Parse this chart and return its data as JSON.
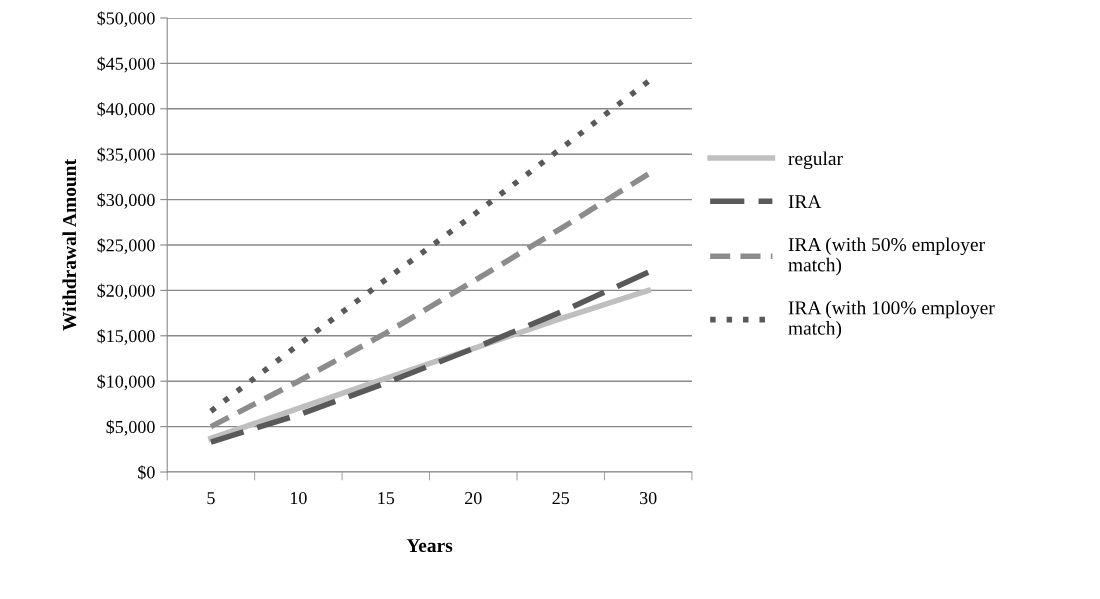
{
  "chart_data": {
    "type": "line",
    "xlabel": "Years",
    "ylabel": "Withdrawal Amount",
    "categories": [
      "5",
      "10",
      "15",
      "20",
      "25",
      "30"
    ],
    "series": [
      {
        "name": "regular",
        "color": "#bfbfbf",
        "line_style": "solid",
        "values": [
          3700,
          7000,
          10300,
          13600,
          16900,
          20000
        ]
      },
      {
        "name": "IRA",
        "color": "#595959",
        "line_style": "dashed",
        "values": [
          3300,
          6300,
          9800,
          13600,
          17600,
          22000
        ]
      },
      {
        "name": "IRA (with 50% employer match)",
        "color": "#8c8c8c",
        "line_style": "dashed",
        "values": [
          5000,
          10000,
          15300,
          21000,
          26800,
          32800
        ]
      },
      {
        "name": "IRA (with 100% employer match)",
        "color": "#595959",
        "line_style": "dotted",
        "values": [
          6700,
          14000,
          21200,
          28300,
          35600,
          43000
        ]
      }
    ],
    "ylim": [
      0,
      50000
    ],
    "yticks": [
      {
        "value": 0,
        "label": "$0"
      },
      {
        "value": 5000,
        "label": "$5,000"
      },
      {
        "value": 10000,
        "label": "$10,000"
      },
      {
        "value": 15000,
        "label": "$15,000"
      },
      {
        "value": 20000,
        "label": "$20,000"
      },
      {
        "value": 25000,
        "label": "$25,000"
      },
      {
        "value": 30000,
        "label": "$30,000"
      },
      {
        "value": 35000,
        "label": "$35,000"
      },
      {
        "value": 40000,
        "label": "$40,000"
      },
      {
        "value": 45000,
        "label": "$45,000"
      },
      {
        "value": 50000,
        "label": "$50,000"
      }
    ],
    "grid": "y",
    "legend": "right",
    "marker": "none"
  }
}
